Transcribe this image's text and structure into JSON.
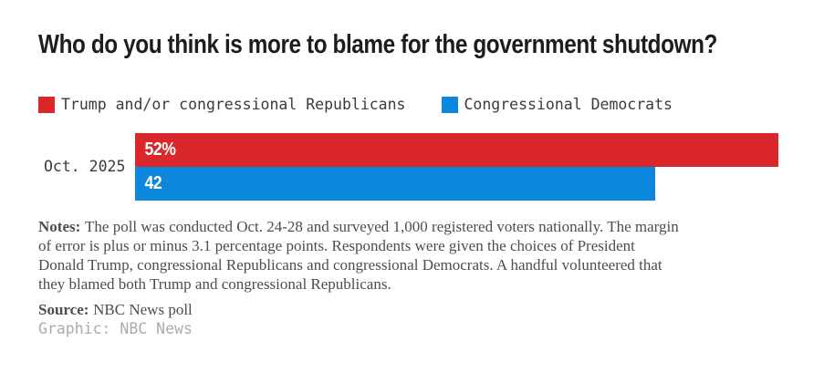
{
  "title": "Who do you think is more to blame for the government shutdown?",
  "legend": {
    "items": [
      {
        "label": "Trump and/or congressional Republicans",
        "color": "#d9272b"
      },
      {
        "label": "Congressional Democrats",
        "color": "#0d87dd"
      }
    ]
  },
  "chart_data": {
    "type": "bar",
    "orientation": "horizontal",
    "title": "Who do you think is more to blame for the government shutdown?",
    "categories": [
      "Oct. 2025"
    ],
    "series": [
      {
        "name": "Trump and/or congressional Republicans",
        "values": [
          52
        ],
        "display_labels": [
          "52%"
        ],
        "color": "#d9272b"
      },
      {
        "name": "Congressional Democrats",
        "values": [
          42
        ],
        "display_labels": [
          "42"
        ],
        "color": "#0d87dd"
      }
    ],
    "value_unit": "percent",
    "xlim": [
      0,
      55.7
    ],
    "grid": false,
    "legend_position": "top",
    "value_labels": "inside-start"
  },
  "notes": {
    "label": "Notes:",
    "body": "The poll was conducted Oct. 24-28 and surveyed 1,000 registered voters nationally. The margin\nof error is plus or minus 3.1 percentage points. Respondents were given the choices of President\nDonald Trump, congressional Republicans and congressional Democrats. A handful volunteered that\nthey blamed both Trump and congressional Republicans."
  },
  "source": {
    "label": "Source:",
    "body": "NBC News poll"
  },
  "credit": "Graphic: NBC News",
  "theme": {
    "background": "#ffffff",
    "title_color": "#1d1d1d",
    "text_color": "#3b3b3b",
    "notes_color": "#4d4d4d",
    "credit_color": "#ababab",
    "bar_label_color": "#ffffff"
  }
}
